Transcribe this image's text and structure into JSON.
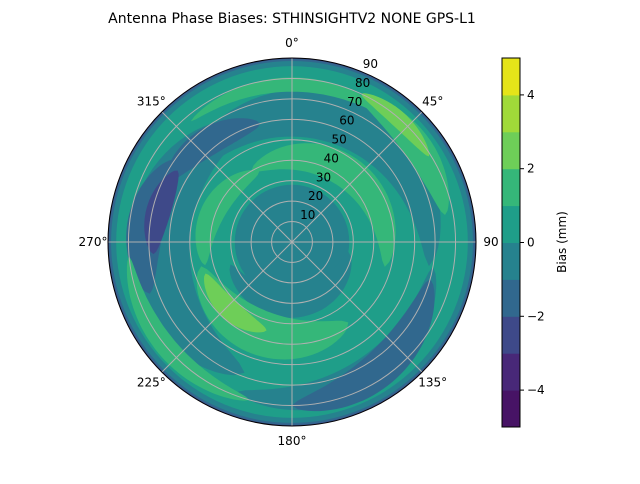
{
  "chart_data": {
    "type": "contour",
    "projection": "polar",
    "title": "Antenna Phase Biases: STHINSIGHTV2    NONE GPS-L1",
    "angular_direction": "clockwise",
    "zero_location": "top",
    "angular_ticks": [
      "0°",
      "45°",
      "90",
      "135°",
      "180°",
      "225°",
      "270°",
      "315°"
    ],
    "radial_ticks": [
      "10",
      "20",
      "30",
      "40",
      "50",
      "60",
      "70",
      "80",
      "90"
    ],
    "radial_range": [
      0,
      90
    ],
    "grid": true,
    "colorbar": {
      "label": "Bias (mm)",
      "range": [
        -5,
        5
      ],
      "ticks": [
        "−4",
        "−2",
        "0",
        "2",
        "4"
      ],
      "tick_values": [
        -4,
        -2,
        0,
        2,
        4
      ],
      "levels": [
        -5,
        -4,
        -3,
        -2,
        -1,
        0,
        1,
        2,
        3,
        4,
        5
      ],
      "colors": [
        "#471365",
        "#482878",
        "#3e4989",
        "#31688e",
        "#26828e",
        "#1f9e89",
        "#35b779",
        "#6ece58",
        "#a0da39",
        "#e5e419"
      ]
    },
    "regions": [
      {
        "level": 0,
        "shape": "disk",
        "zen": [
          0,
          90
        ]
      },
      {
        "level": -1,
        "shape": "ring",
        "zen": [
          86,
          90
        ]
      },
      {
        "level": -2,
        "shape": "ring",
        "zen": [
          88.5,
          90
        ]
      },
      {
        "level": -3,
        "shape": "ring",
        "zen": [
          89.5,
          90
        ]
      },
      {
        "level": -1,
        "shape": "disk",
        "zen": [
          0,
          28
        ]
      },
      {
        "level": -1,
        "shape": "band",
        "az": [
          300,
          100
        ],
        "zen": [
          60,
          68
        ],
        "width": 24
      },
      {
        "level": -1,
        "shape": "band",
        "az": [
          100,
          200
        ],
        "zen": [
          70,
          78
        ],
        "width": 16
      },
      {
        "level": -1,
        "shape": "band",
        "az": [
          200,
          340
        ],
        "zen": [
          68,
          62
        ],
        "width": 30
      },
      {
        "level": -1,
        "shape": "band",
        "az": [
          100,
          250
        ],
        "zen": [
          28,
          32
        ],
        "width": 14
      },
      {
        "level": -2,
        "shape": "band",
        "az": [
          295,
          345
        ],
        "zen": [
          68,
          60
        ],
        "width": 14
      },
      {
        "level": -2,
        "shape": "band",
        "az": [
          250,
          305
        ],
        "zen": [
          74,
          70
        ],
        "width": 18
      },
      {
        "level": -2,
        "shape": "band",
        "az": [
          105,
          180
        ],
        "zen": [
          70,
          80
        ],
        "width": 18
      },
      {
        "level": -3,
        "shape": "band",
        "az": [
          265,
          302
        ],
        "zen": [
          68,
          66
        ],
        "width": 12
      },
      {
        "level": 1,
        "shape": "band",
        "az": [
          330,
          105
        ],
        "zen": [
          40,
          47
        ],
        "width": 16
      },
      {
        "level": 1,
        "shape": "band",
        "az": [
          255,
          145
        ],
        "zen": [
          46,
          48
        ],
        "width": 22
      },
      {
        "level": 1,
        "shape": "band",
        "az": [
          255,
          335
        ],
        "zen": [
          44,
          38
        ],
        "width": 12
      },
      {
        "level": 1,
        "shape": "band",
        "az": [
          320,
          40
        ],
        "zen": [
          77,
          77
        ],
        "width": 7
      },
      {
        "level": 1,
        "shape": "band",
        "az": [
          195,
          265
        ],
        "zen": [
          80,
          80
        ],
        "width": 10
      },
      {
        "level": 1,
        "shape": "band",
        "az": [
          25,
          80
        ],
        "zen": [
          78,
          76
        ],
        "width": 14
      },
      {
        "level": 2,
        "shape": "band",
        "az": [
          250,
          196
        ],
        "zen": [
          45,
          45
        ],
        "width": 10
      },
      {
        "level": 2,
        "shape": "band",
        "az": [
          25,
          58
        ],
        "zen": [
          80,
          79
        ],
        "width": 8
      }
    ]
  }
}
